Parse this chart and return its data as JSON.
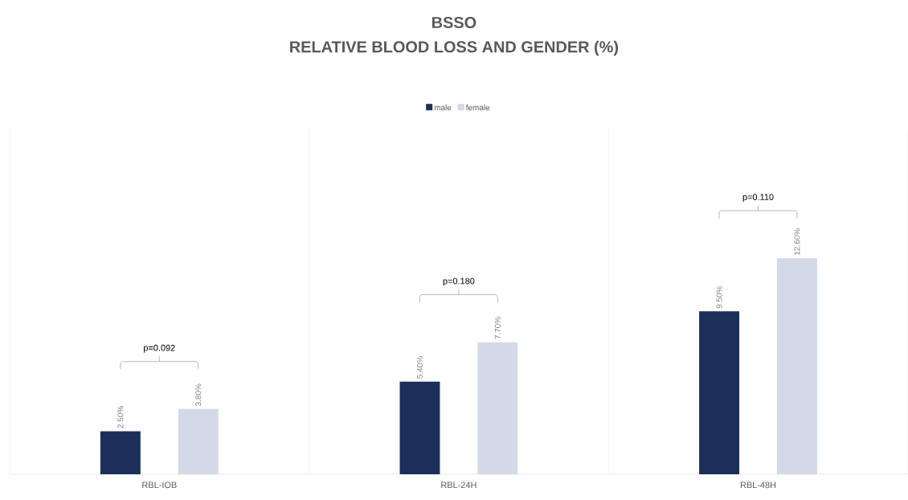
{
  "chart_data": {
    "type": "bar",
    "title": "BSSO",
    "subtitle": "RELATIVE BLOOD LOSS AND GENDER (%)",
    "categories": [
      "RBL-IOB",
      "RBL-24H",
      "RBL-48H"
    ],
    "series": [
      {
        "name": "male",
        "color": "#1c2e5a",
        "values": [
          2.5,
          5.4,
          9.5
        ],
        "value_labels": [
          "2.50%",
          "5.40%",
          "9.50%"
        ]
      },
      {
        "name": "female",
        "color": "#d3d9e5",
        "values": [
          3.8,
          7.7,
          12.6
        ],
        "value_labels": [
          "3.80%",
          "7.70%",
          "12.60%"
        ]
      }
    ],
    "annotations": [
      "p=0.092",
      "p=0.180",
      "p=0.110"
    ],
    "legend": "top",
    "grid": "x"
  }
}
